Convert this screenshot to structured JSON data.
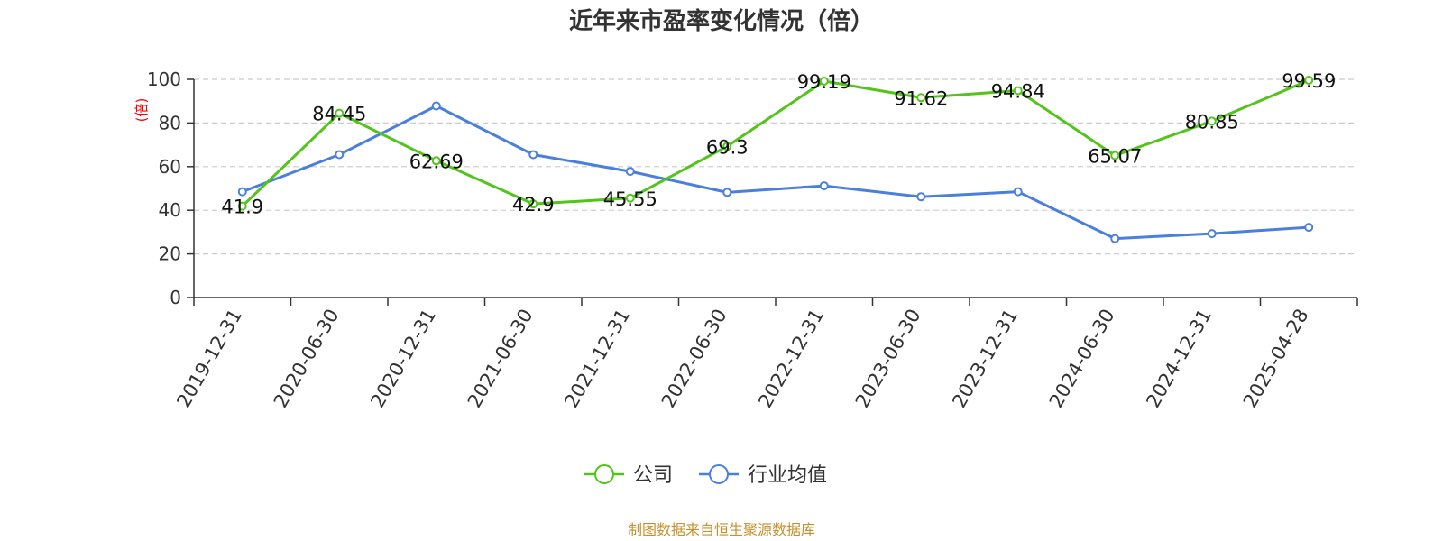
{
  "chart_data": {
    "type": "line",
    "title": "近年来市盈率变化情况（倍）",
    "ylabel": "(倍)",
    "xlabel": "",
    "categories": [
      "2019-12-31",
      "2020-06-30",
      "2020-12-31",
      "2021-06-30",
      "2021-12-31",
      "2022-06-30",
      "2022-12-31",
      "2023-06-30",
      "2023-12-31",
      "2024-06-30",
      "2024-12-31",
      "2025-04-28"
    ],
    "ylim": [
      0,
      100
    ],
    "yticks": [
      0,
      20,
      40,
      60,
      80,
      100
    ],
    "grid": true,
    "legend_position": "bottom",
    "series": [
      {
        "name": "公司",
        "color": "#52c41a",
        "values": [
          41.9,
          84.45,
          62.69,
          42.9,
          45.55,
          69.3,
          99.19,
          91.62,
          94.84,
          65.07,
          80.85,
          99.59
        ],
        "labels": [
          "41.9",
          "84.45",
          "62.69",
          "42.9",
          "45.55",
          "69.3",
          "99.19",
          "91.62",
          "94.84",
          "65.07",
          "80.85",
          "99.59"
        ]
      },
      {
        "name": "行业均值",
        "color": "#4a7fde",
        "values": [
          48.5,
          65.5,
          87.8,
          65.5,
          57.8,
          48.2,
          51.2,
          46.2,
          48.5,
          27.0,
          29.3,
          32.2
        ]
      }
    ]
  },
  "source_text": "制图数据来自恒生聚源数据库",
  "colors": {
    "title": "#333333",
    "axis": "#333333",
    "grid": "#cccccc",
    "ylabel": "#ff0000",
    "source": "#c8902a"
  }
}
